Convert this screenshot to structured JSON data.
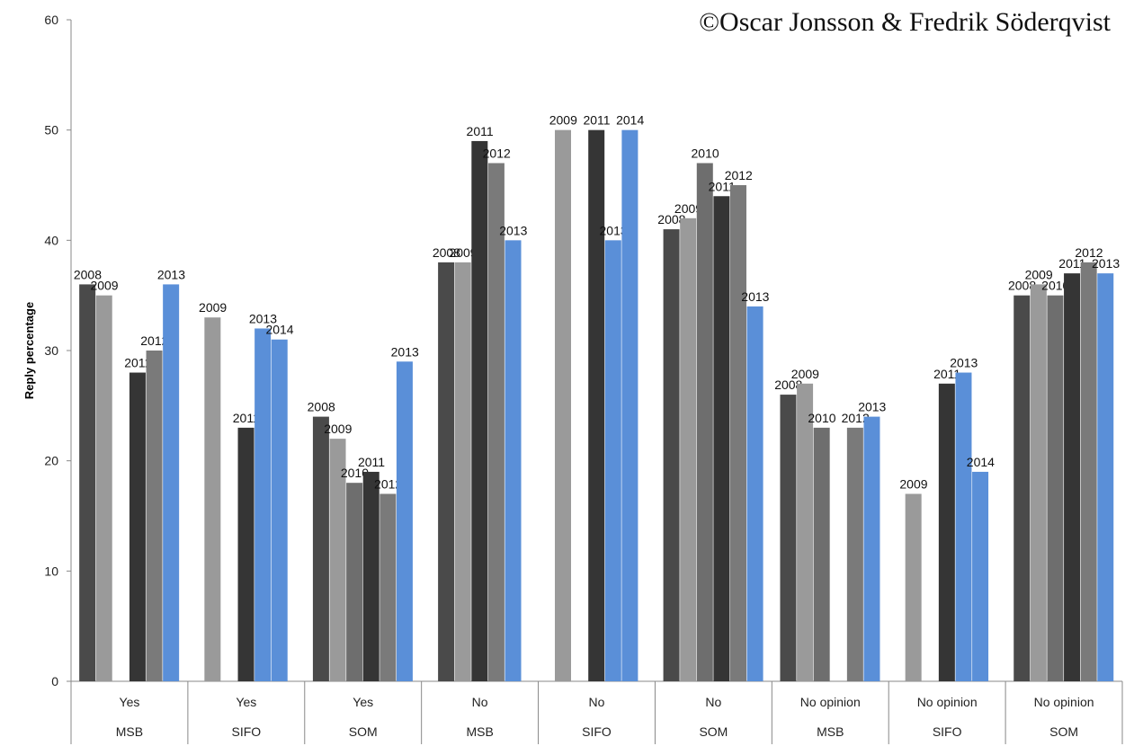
{
  "copyright": "©Oscar Jonsson & Fredrik Söderqvist",
  "chart_data": {
    "type": "bar",
    "title": "",
    "xlabel": "",
    "ylabel": "Reply percentage",
    "ylim": [
      0,
      60
    ],
    "yticks": [
      0,
      10,
      20,
      30,
      40,
      50,
      60
    ],
    "grid": false,
    "legend": "none",
    "colors": {
      "2008": "#4a4a4a",
      "2009": "#9a9a9a",
      "2010": "#6e6e6e",
      "2011": "#353535",
      "2012": "#7a7a7a",
      "2013": "#5a8fd8",
      "2014": "#5a8fd8"
    },
    "groups": [
      {
        "answer": "Yes",
        "source": "MSB",
        "bars": [
          {
            "year": "2008",
            "value": 36
          },
          {
            "year": "2009",
            "value": 35
          },
          {
            "year": "2010",
            "value": null
          },
          {
            "year": "2011",
            "value": 28
          },
          {
            "year": "2012",
            "value": 30
          },
          {
            "year": "2013",
            "value": 36
          }
        ]
      },
      {
        "answer": "Yes",
        "source": "SIFO",
        "bars": [
          {
            "year": "2009",
            "value": 33
          },
          {
            "year": "2010",
            "value": null
          },
          {
            "year": "2011",
            "value": 23
          },
          {
            "year": "2013",
            "value": 32
          },
          {
            "year": "2014",
            "value": 31
          }
        ]
      },
      {
        "answer": "Yes",
        "source": "SOM",
        "bars": [
          {
            "year": "2008",
            "value": 24
          },
          {
            "year": "2009",
            "value": 22
          },
          {
            "year": "2010",
            "value": 18
          },
          {
            "year": "2011",
            "value": 19
          },
          {
            "year": "2012",
            "value": 17
          },
          {
            "year": "2013",
            "value": 29
          }
        ]
      },
      {
        "answer": "No",
        "source": "MSB",
        "bars": [
          {
            "year": "2008",
            "value": 38
          },
          {
            "year": "2009",
            "value": 38
          },
          {
            "year": "2011",
            "value": 49
          },
          {
            "year": "2012",
            "value": 47
          },
          {
            "year": "2013",
            "value": 40
          }
        ]
      },
      {
        "answer": "No",
        "source": "SIFO",
        "bars": [
          {
            "year": "2009",
            "value": 50
          },
          {
            "year": "2010",
            "value": null
          },
          {
            "year": "2011",
            "value": 50
          },
          {
            "year": "2013",
            "value": 40
          },
          {
            "year": "2014",
            "value": 50
          }
        ]
      },
      {
        "answer": "No",
        "source": "SOM",
        "bars": [
          {
            "year": "2008",
            "value": 41
          },
          {
            "year": "2009",
            "value": 42
          },
          {
            "year": "2010",
            "value": 47
          },
          {
            "year": "2011",
            "value": 44
          },
          {
            "year": "2012",
            "value": 45
          },
          {
            "year": "2013",
            "value": 34
          }
        ]
      },
      {
        "answer": "No opinion",
        "source": "MSB",
        "bars": [
          {
            "year": "2008",
            "value": 26
          },
          {
            "year": "2009",
            "value": 27
          },
          {
            "year": "2010",
            "value": 23
          },
          {
            "year": "2011",
            "value": null
          },
          {
            "year": "2012",
            "value": 23
          },
          {
            "year": "2013",
            "value": 24
          }
        ]
      },
      {
        "answer": "No opinion",
        "source": "SIFO",
        "bars": [
          {
            "year": "2009",
            "value": 17
          },
          {
            "year": "2010",
            "value": null
          },
          {
            "year": "2011",
            "value": 27
          },
          {
            "year": "2013",
            "value": 28
          },
          {
            "year": "2014",
            "value": 19
          }
        ]
      },
      {
        "answer": "No opinion",
        "source": "SOM",
        "bars": [
          {
            "year": "2008",
            "value": 35
          },
          {
            "year": "2009",
            "value": 36
          },
          {
            "year": "2010",
            "value": 35
          },
          {
            "year": "2011",
            "value": 37
          },
          {
            "year": "2012",
            "value": 38
          },
          {
            "year": "2013",
            "value": 37
          }
        ]
      }
    ]
  }
}
